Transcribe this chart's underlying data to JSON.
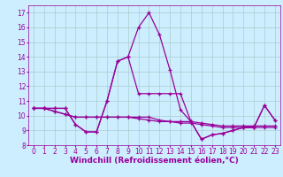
{
  "xlabel": "Windchill (Refroidissement éolien,°C)",
  "ylabel": "",
  "bg_color": "#cceeff",
  "line_color": "#990099",
  "grid_color": "#aacccc",
  "x": [
    0,
    1,
    2,
    3,
    4,
    5,
    6,
    7,
    8,
    9,
    10,
    11,
    12,
    13,
    14,
    15,
    16,
    17,
    18,
    19,
    20,
    21,
    22,
    23
  ],
  "y_series1": [
    10.5,
    10.5,
    10.5,
    10.5,
    9.4,
    8.9,
    8.9,
    11.0,
    13.7,
    14.0,
    16.0,
    17.0,
    15.5,
    13.1,
    10.4,
    9.6,
    8.4,
    8.7,
    8.8,
    9.0,
    9.2,
    9.2,
    10.7,
    9.7
  ],
  "y_main": [
    10.5,
    10.5,
    10.5,
    10.5,
    9.4,
    8.9,
    8.9,
    11.0,
    13.7,
    14.0,
    11.5,
    11.5,
    11.5,
    11.5,
    11.5,
    9.6,
    8.4,
    8.7,
    8.8,
    9.0,
    9.2,
    9.2,
    10.7,
    9.7
  ],
  "y_flat1": [
    10.5,
    10.5,
    10.3,
    10.1,
    9.9,
    9.9,
    9.9,
    9.9,
    9.9,
    9.9,
    9.9,
    9.9,
    9.7,
    9.6,
    9.6,
    9.6,
    9.5,
    9.4,
    9.3,
    9.3,
    9.3,
    9.3,
    9.3,
    9.3
  ],
  "y_flat2": [
    10.5,
    10.5,
    10.3,
    10.1,
    9.9,
    9.9,
    9.9,
    9.9,
    9.9,
    9.9,
    9.8,
    9.7,
    9.6,
    9.6,
    9.5,
    9.5,
    9.4,
    9.3,
    9.2,
    9.2,
    9.2,
    9.2,
    9.2,
    9.2
  ],
  "ylim": [
    8,
    17.5
  ],
  "xlim": [
    -0.5,
    23.5
  ],
  "yticks": [
    8,
    9,
    10,
    11,
    12,
    13,
    14,
    15,
    16,
    17
  ],
  "xticks": [
    0,
    1,
    2,
    3,
    4,
    5,
    6,
    7,
    8,
    9,
    10,
    11,
    12,
    13,
    14,
    15,
    16,
    17,
    18,
    19,
    20,
    21,
    22,
    23
  ],
  "axis_fontsize": 6.5,
  "tick_fontsize": 5.5,
  "marker_size": 3,
  "lw": 0.9
}
